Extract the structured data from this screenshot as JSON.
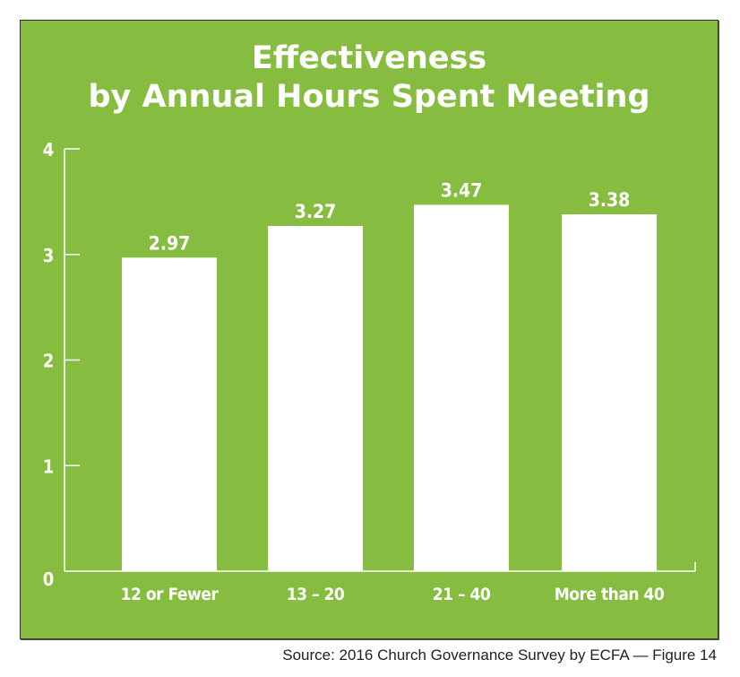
{
  "chart_data": {
    "type": "bar",
    "title": [
      "Effectiveness",
      "by Annual Hours Spent Meeting"
    ],
    "categories": [
      "12 or Fewer",
      "13 – 20",
      "21 – 40",
      "More than 40"
    ],
    "values": [
      2.97,
      3.27,
      3.47,
      3.38
    ],
    "data_labels": [
      "2.97",
      "3.27",
      "3.47",
      "3.38"
    ],
    "yticks": [
      0,
      1,
      2,
      3,
      4
    ],
    "ylim": [
      0,
      4
    ],
    "xlabel": "",
    "ylabel": "",
    "grid": false,
    "colors": {
      "background": "#86bd40",
      "bar": "#ffffff",
      "text": "#ffffff"
    }
  },
  "source": "Source: 2016 Church Governance Survey by ECFA — Figure 14"
}
